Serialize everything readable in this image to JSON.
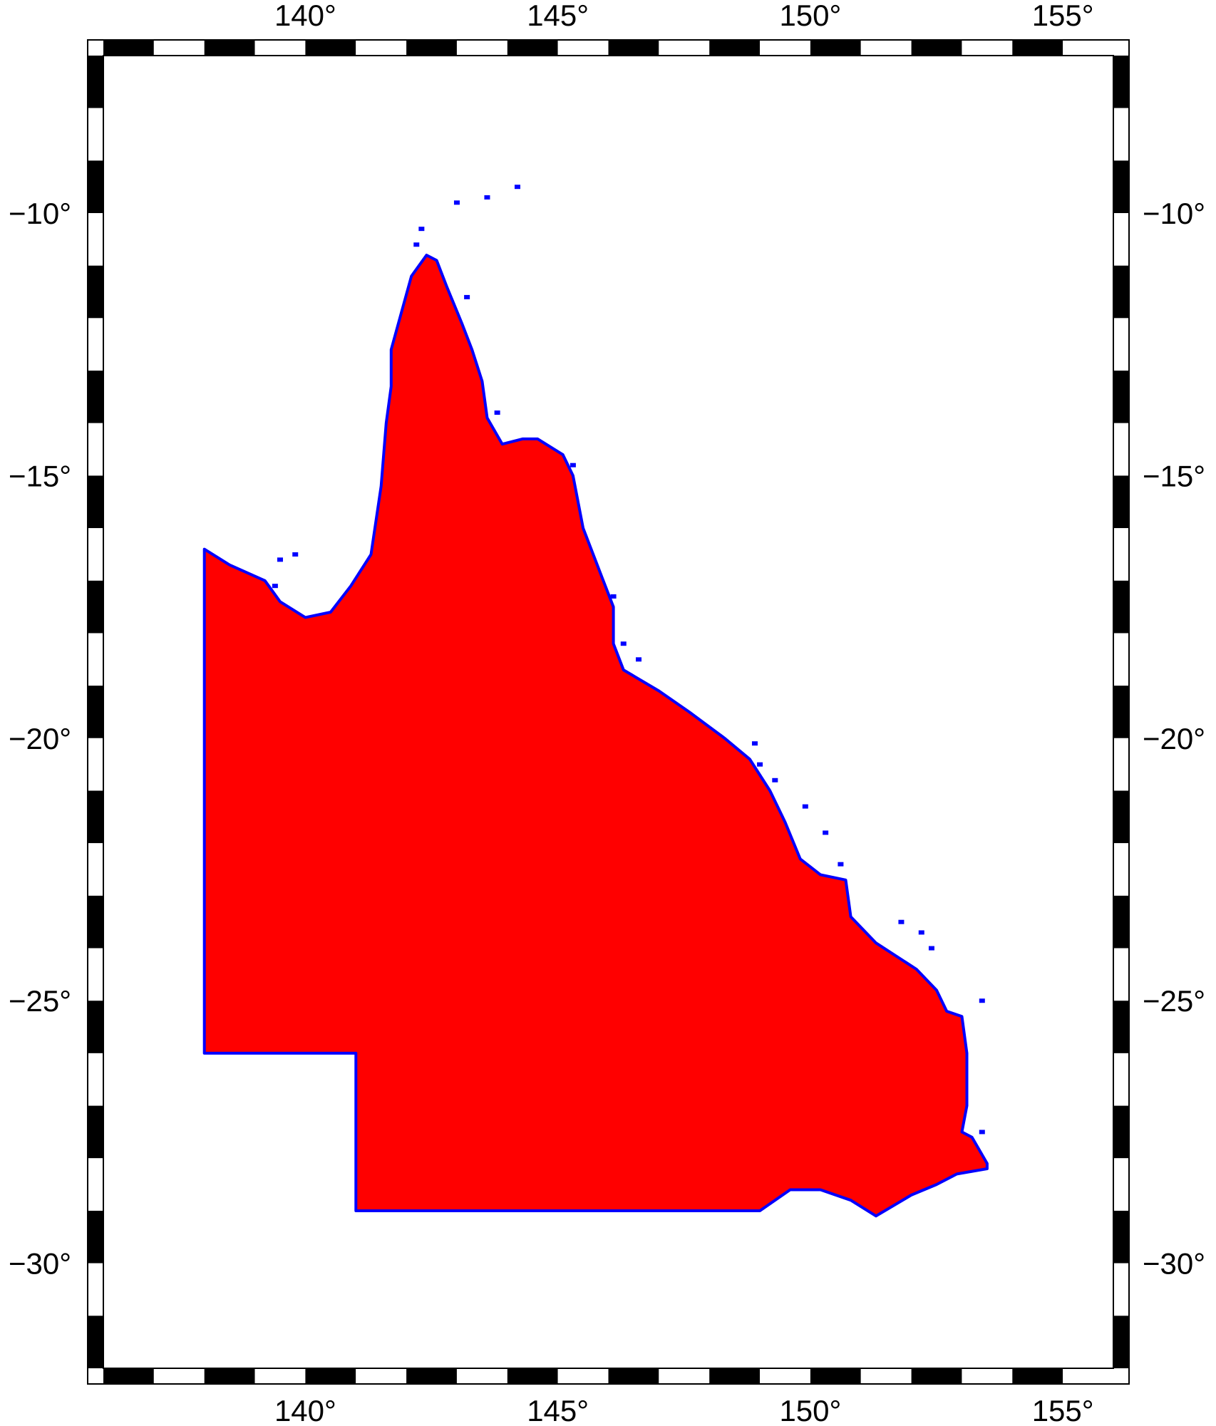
{
  "map": {
    "region_fill_color": "#ff0000",
    "coastline_color": "#0000ff",
    "frame_style": "fancy",
    "lon_range": [
      136,
      156
    ],
    "lat_range": [
      -32,
      -7
    ],
    "lon_ticks": [
      {
        "value": 140,
        "label": "140°"
      },
      {
        "value": 145,
        "label": "145°"
      },
      {
        "value": 150,
        "label": "150°"
      },
      {
        "value": 155,
        "label": "155°"
      }
    ],
    "lat_ticks": [
      {
        "value": -10,
        "label": "−10°"
      },
      {
        "value": -15,
        "label": "−15°"
      },
      {
        "value": -20,
        "label": "−20°"
      },
      {
        "value": -25,
        "label": "−25°"
      },
      {
        "value": -30,
        "label": "−30°"
      }
    ],
    "frame_interval_deg": 1,
    "region_outline": [
      [
        138.0,
        -16.4
      ],
      [
        138.5,
        -16.7
      ],
      [
        139.2,
        -17.0
      ],
      [
        139.5,
        -17.4
      ],
      [
        140.0,
        -17.7
      ],
      [
        140.5,
        -17.6
      ],
      [
        140.9,
        -17.1
      ],
      [
        141.3,
        -16.5
      ],
      [
        141.5,
        -15.2
      ],
      [
        141.6,
        -14.0
      ],
      [
        141.7,
        -13.3
      ],
      [
        141.7,
        -12.6
      ],
      [
        141.9,
        -11.9
      ],
      [
        142.1,
        -11.2
      ],
      [
        142.4,
        -10.8
      ],
      [
        142.6,
        -10.9
      ],
      [
        142.8,
        -11.4
      ],
      [
        143.1,
        -12.1
      ],
      [
        143.3,
        -12.6
      ],
      [
        143.5,
        -13.2
      ],
      [
        143.6,
        -13.9
      ],
      [
        143.9,
        -14.4
      ],
      [
        144.3,
        -14.3
      ],
      [
        144.6,
        -14.3
      ],
      [
        145.1,
        -14.6
      ],
      [
        145.3,
        -15.0
      ],
      [
        145.5,
        -16.0
      ],
      [
        145.9,
        -17.0
      ],
      [
        146.1,
        -17.5
      ],
      [
        146.1,
        -18.2
      ],
      [
        146.3,
        -18.7
      ],
      [
        147.0,
        -19.1
      ],
      [
        147.6,
        -19.5
      ],
      [
        148.3,
        -20.0
      ],
      [
        148.8,
        -20.4
      ],
      [
        149.2,
        -21.0
      ],
      [
        149.5,
        -21.6
      ],
      [
        149.8,
        -22.3
      ],
      [
        150.2,
        -22.6
      ],
      [
        150.7,
        -22.7
      ],
      [
        150.8,
        -23.4
      ],
      [
        151.3,
        -23.9
      ],
      [
        152.1,
        -24.4
      ],
      [
        152.5,
        -24.8
      ],
      [
        152.7,
        -25.2
      ],
      [
        153.0,
        -25.3
      ],
      [
        153.1,
        -26.0
      ],
      [
        153.1,
        -26.5
      ],
      [
        153.1,
        -27.0
      ],
      [
        153.0,
        -27.5
      ],
      [
        153.2,
        -27.6
      ],
      [
        153.5,
        -28.1
      ],
      [
        153.5,
        -28.2
      ],
      [
        152.9,
        -28.3
      ],
      [
        152.5,
        -28.5
      ],
      [
        152.0,
        -28.7
      ],
      [
        151.3,
        -29.1
      ],
      [
        150.8,
        -28.8
      ],
      [
        150.2,
        -28.6
      ],
      [
        149.6,
        -28.6
      ],
      [
        149.0,
        -29.0
      ],
      [
        141.0,
        -29.0
      ],
      [
        141.0,
        -26.0
      ],
      [
        138.0,
        -26.0
      ]
    ],
    "islands": [
      [
        139.8,
        -16.5
      ],
      [
        139.5,
        -16.6
      ],
      [
        139.4,
        -17.1
      ],
      [
        142.3,
        -10.3
      ],
      [
        142.2,
        -10.6
      ],
      [
        143.0,
        -9.8
      ],
      [
        143.6,
        -9.7
      ],
      [
        144.2,
        -9.5
      ],
      [
        143.2,
        -11.6
      ],
      [
        145.3,
        -14.8
      ],
      [
        146.1,
        -17.3
      ],
      [
        146.3,
        -18.2
      ],
      [
        146.6,
        -18.5
      ],
      [
        148.9,
        -20.1
      ],
      [
        149.0,
        -20.5
      ],
      [
        149.3,
        -20.8
      ],
      [
        149.9,
        -21.3
      ],
      [
        150.3,
        -21.8
      ],
      [
        150.6,
        -22.4
      ],
      [
        151.8,
        -23.5
      ],
      [
        152.2,
        -23.7
      ],
      [
        152.4,
        -24.0
      ],
      [
        153.4,
        -25.0
      ],
      [
        153.4,
        -27.5
      ],
      [
        143.8,
        -13.8
      ]
    ]
  }
}
